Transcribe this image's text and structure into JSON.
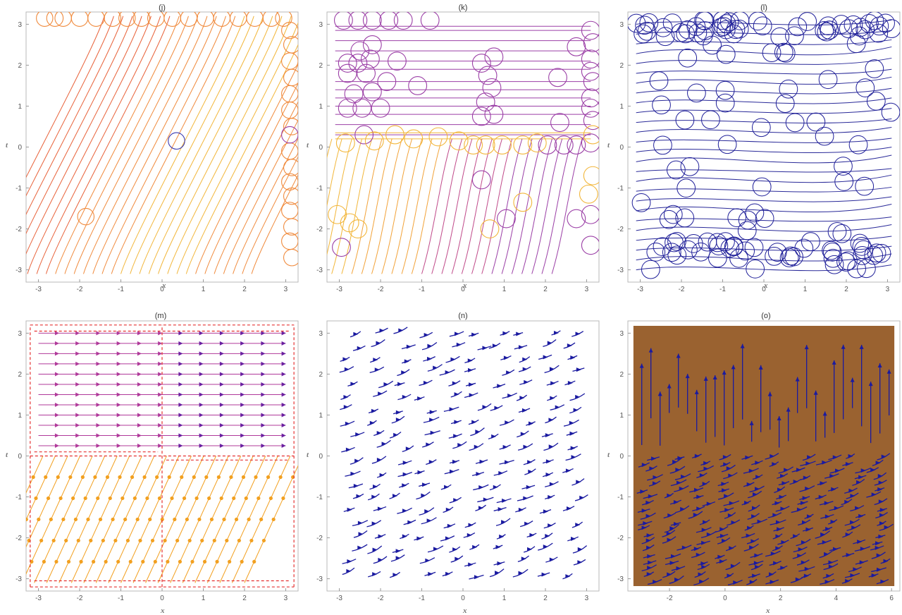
{
  "figure": {
    "colors": {
      "frame": "#b9b9b9",
      "tick_text": "#555555",
      "axis_label": "#777777",
      "orange": "#f08a3c",
      "gold": "#f2b63a",
      "red_orange": "#e8623a",
      "purple": "#9b3fa6",
      "magenta": "#b0399a",
      "blue": "#1a1aa0",
      "navy": "#222288",
      "red": "#e53030",
      "brown": "#9a6230"
    }
  },
  "chart_data": [
    {
      "id": "j",
      "title": "(j)",
      "type": "stream",
      "xlabel": "x",
      "ylabel": "t",
      "xlim": [
        -3.3,
        3.3
      ],
      "ylim": [
        -3.3,
        3.3
      ],
      "xticks": [
        -3,
        -2,
        -1,
        0,
        1,
        2,
        3
      ],
      "yticks": [
        -3,
        -2,
        -1,
        0,
        1,
        2,
        3
      ],
      "background": "#ffffff",
      "series": [
        {
          "kind": "slanted-lines",
          "slope": 2.1,
          "count": 30,
          "colors": [
            "#e8623a",
            "#f08a3c",
            "#f2b63a",
            "#f08a3c"
          ],
          "xmin": -3.2,
          "xmax": 3.2
        },
        {
          "kind": "circles",
          "color": "#f08a3c",
          "r": 0.2,
          "points": [
            [
              -2.85,
              3.15
            ],
            [
              -2.6,
              3.15
            ],
            [
              -2.4,
              3.15
            ],
            [
              -2.0,
              3.15
            ],
            [
              -1.6,
              3.15
            ],
            [
              -1.2,
              3.15
            ],
            [
              -0.85,
              3.15
            ],
            [
              -0.5,
              3.15
            ],
            [
              -0.15,
              3.15
            ],
            [
              0.25,
              3.15
            ],
            [
              0.65,
              3.15
            ],
            [
              1.05,
              3.15
            ],
            [
              1.45,
              3.15
            ],
            [
              1.85,
              3.15
            ],
            [
              2.25,
              3.15
            ],
            [
              2.65,
              3.15
            ],
            [
              2.95,
              3.15
            ],
            [
              3.1,
              2.85
            ],
            [
              3.15,
              2.5
            ],
            [
              3.1,
              2.1
            ],
            [
              3.15,
              1.7
            ],
            [
              3.1,
              1.3
            ],
            [
              3.1,
              0.9
            ],
            [
              3.15,
              0.5
            ],
            [
              3.1,
              -0.1
            ],
            [
              3.15,
              -0.5
            ],
            [
              3.1,
              -0.85
            ],
            [
              3.15,
              -1.2
            ],
            [
              3.1,
              -1.55
            ],
            [
              3.15,
              -1.95
            ],
            [
              3.1,
              -2.3
            ],
            [
              3.15,
              -2.7
            ],
            [
              -1.85,
              -1.7
            ]
          ]
        },
        {
          "kind": "circles",
          "color": "#9b3fa6",
          "r": 0.2,
          "points": [
            [
              3.1,
              0.3
            ]
          ]
        },
        {
          "kind": "circles",
          "color": "#3a3ab0",
          "r": 0.2,
          "points": [
            [
              0.35,
              0.15
            ]
          ]
        }
      ]
    },
    {
      "id": "k",
      "title": "(k)",
      "type": "stream",
      "xlabel": "x",
      "ylabel": "t",
      "xlim": [
        -3.3,
        3.3
      ],
      "ylim": [
        -3.3,
        3.3
      ],
      "xticks": [
        -3,
        -2,
        -1,
        0,
        1,
        2,
        3
      ],
      "yticks": [
        -3,
        -2,
        -1,
        0,
        1,
        2,
        3
      ],
      "background": "#ffffff",
      "series": [
        {
          "kind": "hlines",
          "color": "#9b3fa6",
          "ys": [
            2.95,
            2.85,
            2.6,
            2.35,
            2.1,
            1.9,
            1.6,
            1.4,
            1.2,
            1.0,
            0.8,
            0.55,
            0.3
          ],
          "xmin": -3.1,
          "xmax": 3.1
        },
        {
          "kind": "hlines",
          "color": "#f2b63a",
          "ys": [
            0.35,
            0.2
          ],
          "xmin": -3.1,
          "xmax": 3.1
        },
        {
          "kind": "slanted-lines",
          "slope": 4.5,
          "count": 28,
          "colors": [
            "#f2b63a",
            "#f2a33a",
            "#c04a8a",
            "#9b3fa6"
          ],
          "xmin": -3.2,
          "xmax": 3.2,
          "ytop": 0.2
        },
        {
          "kind": "circles",
          "color": "#9b3fa6",
          "r": 0.22,
          "points": [
            [
              -2.9,
              3.1
            ],
            [
              -2.55,
              3.1
            ],
            [
              -2.2,
              3.1
            ],
            [
              -1.8,
              3.1
            ],
            [
              -1.45,
              3.1
            ],
            [
              -0.8,
              3.1
            ],
            [
              -2.5,
              2.35
            ],
            [
              -2.2,
              2.5
            ],
            [
              -2.8,
              2.05
            ],
            [
              -2.55,
              2.05
            ],
            [
              -2.25,
              2.15
            ],
            [
              -1.6,
              2.1
            ],
            [
              -2.8,
              1.8
            ],
            [
              -2.35,
              1.8
            ],
            [
              -1.85,
              1.6
            ],
            [
              -2.65,
              1.3
            ],
            [
              -2.2,
              1.35
            ],
            [
              -2.8,
              0.95
            ],
            [
              -2.45,
              0.95
            ],
            [
              -2.0,
              0.95
            ],
            [
              -2.4,
              0.3
            ],
            [
              -1.1,
              1.5
            ],
            [
              0.45,
              2.05
            ],
            [
              0.75,
              2.2
            ],
            [
              0.6,
              1.75
            ],
            [
              0.7,
              1.45
            ],
            [
              0.55,
              1.1
            ],
            [
              0.75,
              0.8
            ],
            [
              0.45,
              0.75
            ],
            [
              2.3,
              1.7
            ],
            [
              2.75,
              2.45
            ],
            [
              3.1,
              2.85
            ],
            [
              3.15,
              2.55
            ],
            [
              3.1,
              2.15
            ],
            [
              3.1,
              1.85
            ],
            [
              3.15,
              1.6
            ],
            [
              3.1,
              1.2
            ],
            [
              3.1,
              0.95
            ],
            [
              3.15,
              0.65
            ],
            [
              2.35,
              0.6
            ],
            [
              3.1,
              0.1
            ],
            [
              2.05,
              0.05
            ],
            [
              2.45,
              0.05
            ],
            [
              2.75,
              0.05
            ],
            [
              0.45,
              -0.8
            ],
            [
              1.05,
              -1.75
            ],
            [
              2.75,
              -1.75
            ],
            [
              3.1,
              -1.65
            ],
            [
              3.1,
              -2.4
            ],
            [
              -2.95,
              -2.45
            ]
          ]
        },
        {
          "kind": "circles",
          "color": "#f2b63a",
          "r": 0.22,
          "points": [
            [
              -2.85,
              0.1
            ],
            [
              -2.15,
              0.15
            ],
            [
              -1.65,
              0.3
            ],
            [
              -1.2,
              0.2
            ],
            [
              -0.6,
              0.25
            ],
            [
              -0.1,
              0.15
            ],
            [
              0.25,
              0.05
            ],
            [
              0.55,
              0.05
            ],
            [
              0.95,
              0.05
            ],
            [
              1.45,
              0.05
            ],
            [
              1.8,
              0.1
            ],
            [
              3.15,
              0.3
            ],
            [
              3.15,
              -0.7
            ],
            [
              3.05,
              -1.15
            ],
            [
              1.45,
              -1.35
            ],
            [
              -3.05,
              -1.65
            ],
            [
              -2.75,
              -1.85
            ],
            [
              -2.55,
              -2.0
            ],
            [
              0.65,
              -2.0
            ]
          ]
        }
      ]
    },
    {
      "id": "l",
      "title": "(l)",
      "type": "stream",
      "xlabel": "x",
      "ylabel": "t",
      "xlim": [
        -3.3,
        3.3
      ],
      "ylim": [
        -3.3,
        3.3
      ],
      "xticks": [
        -3,
        -2,
        -1,
        0,
        1,
        2,
        3
      ],
      "yticks": [
        -3,
        -2,
        -1,
        0,
        1,
        2,
        3
      ],
      "background": "#ffffff",
      "series": [
        {
          "kind": "wavy-lines",
          "color": "#2a2a99",
          "count": 26,
          "xmin": -3.1,
          "xmax": 3.1
        },
        {
          "kind": "circles",
          "color": "#1f1f99",
          "r": 0.22,
          "grid_fill": true
        }
      ]
    },
    {
      "id": "m",
      "title": "(m)",
      "type": "stream",
      "xlabel": "x",
      "ylabel": "t",
      "xlim": [
        -3.3,
        3.3
      ],
      "ylim": [
        -3.3,
        3.3
      ],
      "xticks": [
        -3,
        -2,
        -1,
        0,
        1,
        2,
        3
      ],
      "yticks": [
        -3,
        -2,
        -1,
        0,
        1,
        2,
        3
      ],
      "background": "#ffffff",
      "series": [
        {
          "kind": "arrow-hlines",
          "colors": [
            "#b0399a",
            "#6a1fa0"
          ],
          "ys": [
            3.0,
            2.75,
            2.5,
            2.25,
            2.0,
            1.75,
            1.5,
            1.25,
            1.0,
            0.75,
            0.5,
            0.25
          ],
          "xmin": -3.1,
          "xmax": 3.1
        },
        {
          "kind": "arrow-slants",
          "color": "#f2a020",
          "slope": 2.2,
          "count": 22,
          "ytop": 0.0,
          "xmin": -3.2,
          "xmax": 3.2
        },
        {
          "kind": "dashed-border",
          "color": "#e53030"
        }
      ]
    },
    {
      "id": "n",
      "title": "(n)",
      "type": "stream",
      "xlabel": "x",
      "ylabel": "t",
      "xlim": [
        -3.3,
        3.3
      ],
      "ylim": [
        -3.3,
        3.3
      ],
      "xticks": [
        -3,
        -2,
        -1,
        0,
        1,
        2,
        3
      ],
      "yticks": [
        -3,
        -2,
        -1,
        0,
        1,
        2,
        3
      ],
      "background": "#ffffff",
      "series": [
        {
          "kind": "arrow-field",
          "color": "#1a1aa0",
          "rows": 24,
          "cols": 12
        }
      ]
    },
    {
      "id": "o",
      "title": "(o)",
      "type": "stream",
      "xlabel": "x",
      "ylabel": "t",
      "xlim": [
        -3.5,
        6.3
      ],
      "ylim": [
        -3.3,
        3.3
      ],
      "xticks": [
        -2,
        0,
        2,
        4,
        6
      ],
      "yticks": [
        -3,
        -2,
        -1,
        0,
        1,
        2,
        3
      ],
      "background": "#9a6230",
      "series": [
        {
          "kind": "vertical-arrows",
          "color": "#1a1aa0",
          "ymin": 0.2,
          "ymax": 3.2
        },
        {
          "kind": "arrow-field",
          "color": "#1a1aa0",
          "ymin": -3.2,
          "ymax": 0.0
        }
      ]
    }
  ]
}
